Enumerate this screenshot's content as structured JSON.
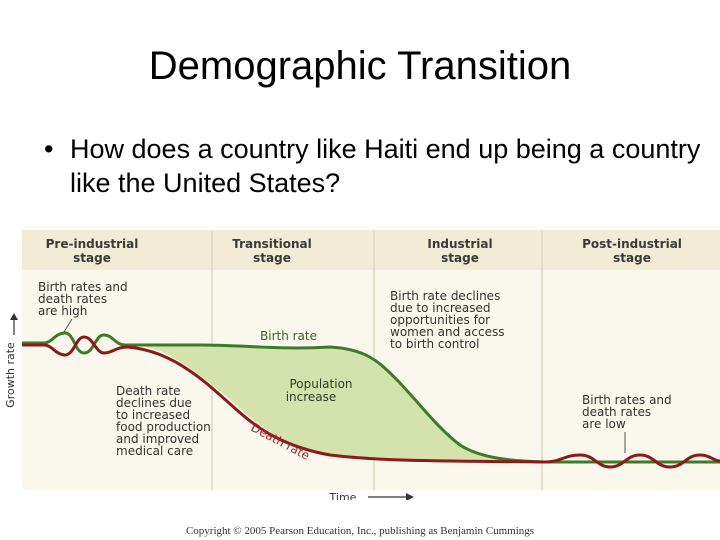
{
  "slide": {
    "title": "Demographic Transition",
    "bullet_symbol": "•",
    "bullet_text": "How does a country like Haiti end up being a country like the United States?"
  },
  "diagram": {
    "stages": [
      {
        "line1": "Pre-industrial",
        "line2": "stage"
      },
      {
        "line1": "Transitional",
        "line2": "stage"
      },
      {
        "line1": "Industrial",
        "line2": "stage"
      },
      {
        "line1": "Post-industrial",
        "line2": "stage"
      }
    ],
    "y_axis_label": "Growth rate",
    "x_axis_label": "Time",
    "birth_rate_label": "Birth rate",
    "death_rate_label": "Death rate",
    "population_increase_label": [
      "Population",
      "increase"
    ],
    "annotations": {
      "pre_industrial": [
        "Birth rates and",
        "death rates",
        "are high"
      ],
      "death_decline": [
        "Death rate",
        "declines due",
        "to increased",
        "food production",
        "and improved",
        "medical care"
      ],
      "birth_decline": [
        "Birth rate declines",
        "due to increased",
        "opportunities for",
        "women and access",
        "to birth control"
      ],
      "post_industrial": [
        "Birth rates and",
        "death rates",
        "are low"
      ]
    },
    "colors": {
      "header_bg": "#f2ecd6",
      "panel_bg": "#faf7ec",
      "header_text": "#3a3a3a",
      "birth_line": "#3f7a2a",
      "death_line": "#8b1a1a",
      "fill": "#d4e3ad",
      "label_green": "#2f6b22",
      "label_red": "#9a2a2a"
    }
  },
  "footer": {
    "copyright": "Copyright © 2005 Pearson Education, Inc., publishing as Benjamin Cummings"
  }
}
